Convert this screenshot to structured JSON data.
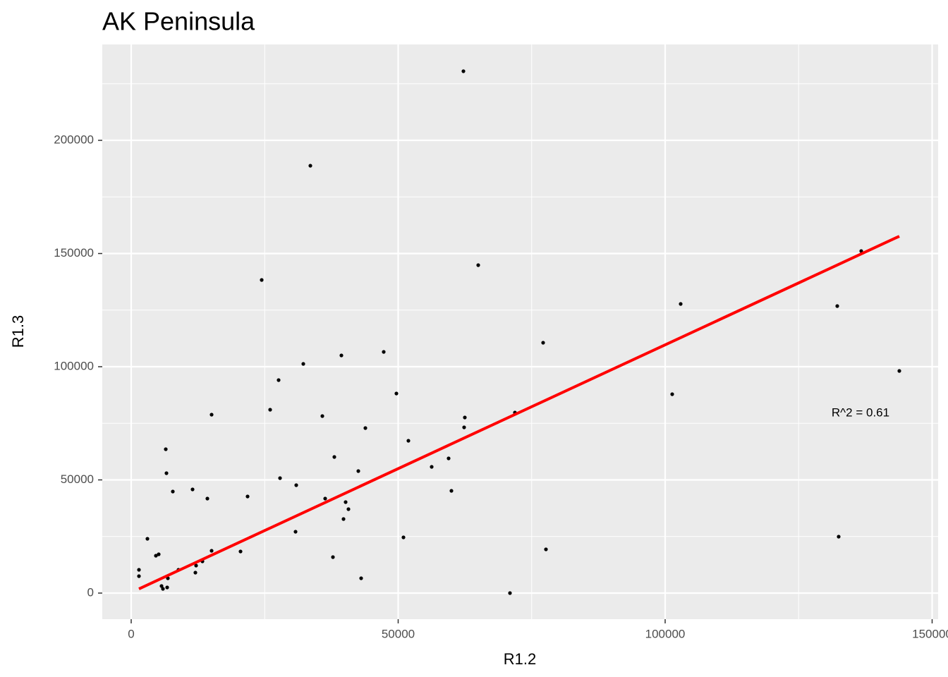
{
  "chart_data": {
    "type": "scatter",
    "title": "AK Peninsula",
    "x_label": "R1.2",
    "y_label": "R1.3",
    "x": [
      1453,
      1453,
      3038,
      4624,
      5152,
      5680,
      5945,
      6737,
      6473,
      6605,
      6869,
      7794,
      8851,
      11493,
      12021,
      12153,
      13342,
      14267,
      15059,
      15059,
      20476,
      21797,
      24439,
      26024,
      27609,
      27873,
      30779,
      30911,
      32232,
      33553,
      35799,
      36328,
      38045,
      37781,
      39366,
      39762,
      40159,
      40687,
      42536,
      43065,
      43857,
      47292,
      49670,
      50991,
      51915,
      56275,
      59445,
      59974,
      62219,
      62351,
      62483,
      64993,
      70938,
      71863,
      77147,
      77675,
      101321,
      102906,
      132232,
      132497,
      136724,
      143857
    ],
    "y": [
      10280,
      7477,
      23988,
      16511,
      17134,
      3115,
      1869,
      2492,
      63551,
      52960,
      6542,
      44860,
      10280,
      45794,
      9034,
      12150,
      14019,
      41745,
      78816,
      18692,
      18380,
      42679,
      138318,
      80997,
      94081,
      50779,
      27103,
      47664,
      101246,
      188785,
      78193,
      41745,
      60125,
      15888,
      104984,
      32710,
      40187,
      37072,
      53894,
      6542,
      72897,
      106542,
      88162,
      24611,
      67290,
      55763,
      59502,
      45171,
      230530,
      73209,
      77570,
      144860,
      0,
      79751,
      110592,
      19315,
      87850,
      127726,
      126791,
      24922,
      151090,
      98131
    ],
    "color": "#000000",
    "fit": {
      "x": [
        1453,
        143857
      ],
      "y": [
        1869,
        157632
      ],
      "color": "#ff0000"
    },
    "annotation": "R^2 = 0.61",
    "xlim": [
      -5416,
      151123
    ],
    "ylim": [
      -11526,
      242368
    ],
    "xticks": [
      0,
      50000,
      100000,
      150000
    ],
    "yticks": [
      0,
      50000,
      100000,
      150000,
      200000
    ],
    "xminor": [
      25000,
      75000,
      125000
    ],
    "yminor": [
      25000,
      75000,
      125000,
      175000,
      225000
    ],
    "grid": true
  }
}
